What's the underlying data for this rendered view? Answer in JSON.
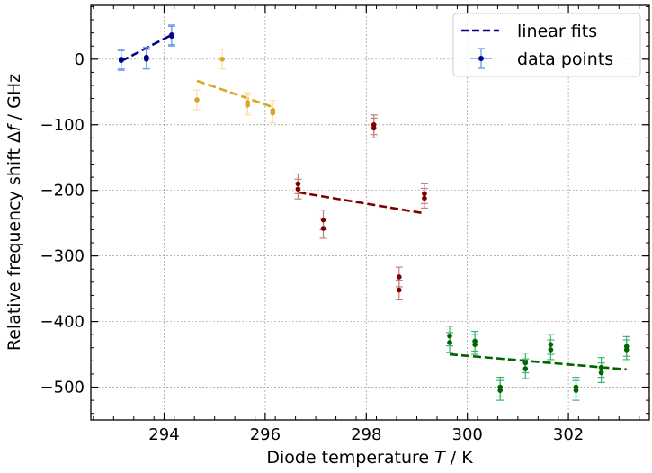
{
  "chart_data": {
    "type": "scatter",
    "xlabel_prefix": "Diode temperature ",
    "xlabel_var": "T",
    "xlabel_suffix": " / K",
    "ylabel_prefix": "Relative frequency shift Δ",
    "ylabel_var": "f",
    "ylabel_suffix": " / GHz",
    "xlim": [
      292.55,
      303.6
    ],
    "ylim": [
      -550,
      82
    ],
    "xticks": [
      294,
      296,
      298,
      300,
      302
    ],
    "xtick_labels": [
      "294",
      "296",
      "298",
      "300",
      "302"
    ],
    "yticks": [
      0,
      -100,
      -200,
      -300,
      -400,
      -500
    ],
    "ytick_labels": [
      "0",
      "−100",
      "−200",
      "−300",
      "−400",
      "−500"
    ],
    "grid": true,
    "legend_position": "top-right",
    "legend": [
      {
        "label": "linear fits",
        "style": "dashed-line",
        "color": "#00008b"
      },
      {
        "label": "data points",
        "style": "errorbar-marker",
        "color": "#00008b",
        "errcolor": "#6495ed"
      }
    ],
    "series": [
      {
        "color": "#00008b",
        "errcolor": "#6495ed",
        "points": [
          [
            293.15,
            0
          ],
          [
            293.15,
            -2
          ],
          [
            293.65,
            3
          ],
          [
            293.65,
            0
          ],
          [
            294.15,
            37
          ],
          [
            294.15,
            35
          ]
        ],
        "yerr": 15,
        "xerr": 0.05,
        "fit": {
          "x": [
            293.15,
            294.15
          ],
          "y": [
            -3,
            37
          ]
        }
      },
      {
        "color": "#daa520",
        "errcolor": "#ffdead",
        "points": [
          [
            294.65,
            -62
          ],
          [
            295.15,
            0
          ],
          [
            295.65,
            -66
          ],
          [
            295.65,
            -70
          ],
          [
            296.15,
            -78
          ],
          [
            296.15,
            -82
          ]
        ],
        "yerr": 15,
        "xerr": 0.05,
        "fit": {
          "x": [
            294.65,
            296.15
          ],
          "y": [
            -33,
            -73
          ]
        }
      },
      {
        "color": "#800000",
        "errcolor": "#c08080",
        "points": [
          [
            296.65,
            -190
          ],
          [
            296.65,
            -198
          ],
          [
            297.15,
            -245
          ],
          [
            297.15,
            -258
          ],
          [
            298.15,
            -100
          ],
          [
            298.15,
            -105
          ],
          [
            298.65,
            -332
          ],
          [
            298.65,
            -352
          ],
          [
            299.15,
            -205
          ],
          [
            299.15,
            -212
          ]
        ],
        "yerr": 15,
        "xerr": 0.05,
        "fit": {
          "x": [
            296.65,
            299.15
          ],
          "y": [
            -203,
            -235
          ]
        }
      },
      {
        "color": "#006400",
        "errcolor": "#3cb371",
        "points": [
          [
            299.65,
            -422
          ],
          [
            299.65,
            -432
          ],
          [
            300.15,
            -430
          ],
          [
            300.15,
            -435
          ],
          [
            300.65,
            -500
          ],
          [
            300.65,
            -505
          ],
          [
            301.15,
            -463
          ],
          [
            301.15,
            -472
          ],
          [
            301.65,
            -435
          ],
          [
            301.65,
            -443
          ],
          [
            302.15,
            -500
          ],
          [
            302.15,
            -505
          ],
          [
            302.65,
            -470
          ],
          [
            302.65,
            -478
          ],
          [
            303.15,
            -438
          ],
          [
            303.15,
            -443
          ]
        ],
        "yerr": 15,
        "xerr": 0.05,
        "fit": {
          "x": [
            299.65,
            303.15
          ],
          "y": [
            -450,
            -473
          ]
        }
      }
    ]
  }
}
